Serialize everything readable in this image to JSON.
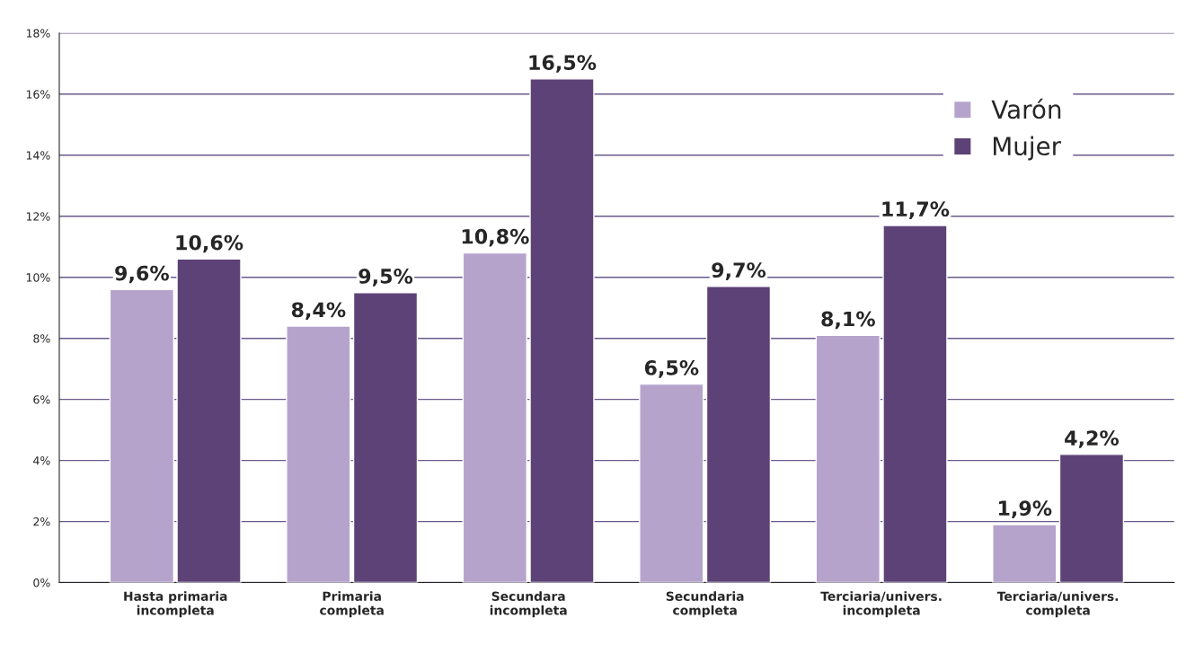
{
  "chart_data": {
    "type": "bar",
    "categories": [
      "Hasta primaria\nincompleta",
      "Primaria\ncompleta",
      "Secundara\nincompleta",
      "Secundaria\ncompleta",
      "Terciaria/univers.\nincompleta",
      "Terciaria/univers.\ncompleta"
    ],
    "series": [
      {
        "name": "Varón",
        "color": "#b5a3cc",
        "values": [
          9.6,
          8.4,
          10.8,
          6.5,
          8.1,
          1.9
        ],
        "value_labels": [
          "9,6%",
          "8,4%",
          "10,8%",
          "6,5%",
          "8,1%",
          "1,9%"
        ]
      },
      {
        "name": "Mujer",
        "color": "#5d4277",
        "values": [
          10.6,
          9.5,
          16.5,
          9.7,
          11.7,
          4.2
        ],
        "value_labels": [
          "10,6%",
          "9,5%",
          "16,5%",
          "9,7%",
          "11,7%",
          "4,2%"
        ]
      }
    ],
    "ylim": [
      0,
      18
    ],
    "yticks": [
      {
        "value": 0,
        "label": "0%"
      },
      {
        "value": 2,
        "label": "2%"
      },
      {
        "value": 4,
        "label": "4%"
      },
      {
        "value": 6,
        "label": "6%"
      },
      {
        "value": 8,
        "label": "8%"
      },
      {
        "value": 10,
        "label": "10%"
      },
      {
        "value": 12,
        "label": "12%"
      },
      {
        "value": 14,
        "label": "14%"
      },
      {
        "value": 16,
        "label": "16%"
      },
      {
        "value": 18,
        "label": "18%"
      }
    ],
    "grid": "y",
    "legend": "top right"
  }
}
